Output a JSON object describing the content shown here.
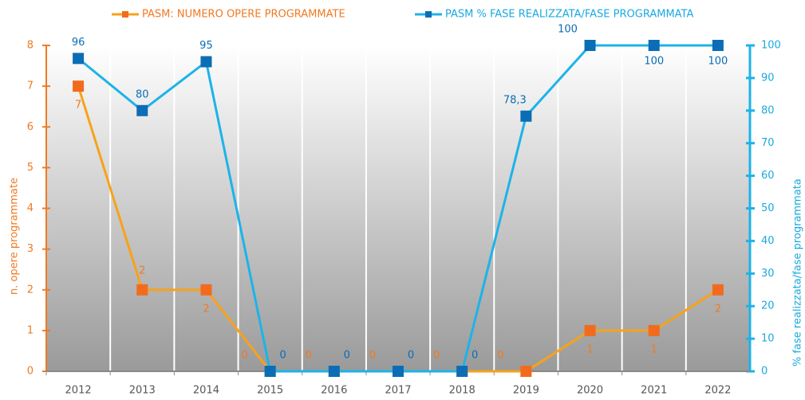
{
  "chart_data": {
    "type": "line",
    "categories": [
      "2012",
      "2013",
      "2014",
      "2015",
      "2016",
      "2017",
      "2018",
      "2019",
      "2020",
      "2021",
      "2022"
    ],
    "series": [
      {
        "name": "PASM: NUMERO OPERE PROGRAMMATE",
        "color": "#f7a21b",
        "marker_color": "#f26b1d",
        "axis": "y",
        "values": [
          7,
          2,
          2,
          0,
          0,
          0,
          0,
          0,
          1,
          1,
          2
        ]
      },
      {
        "name": "PASM % FASE REALIZZATA/FASE PROGRAMMATA",
        "color": "#1db3e8",
        "marker_color": "#0b6db5",
        "axis": "y2",
        "values": [
          96,
          80,
          95,
          0,
          0,
          0,
          0,
          78.3,
          100,
          100,
          100
        ],
        "value_labels": [
          "96",
          "80",
          "95",
          "0",
          "0",
          "0",
          "0",
          "78,3",
          "100",
          "100",
          "100"
        ]
      }
    ],
    "ylabel": "n. opere programmate",
    "y2label": "% fase realizzata/fase programmata",
    "ylim": [
      0,
      8
    ],
    "yticks": [
      0,
      1,
      2,
      3,
      4,
      5,
      6,
      7,
      8
    ],
    "y2lim": [
      0,
      100
    ],
    "y2ticks": [
      0,
      10,
      20,
      30,
      40,
      50,
      60,
      70,
      80,
      90,
      100
    ],
    "legend": "top"
  }
}
